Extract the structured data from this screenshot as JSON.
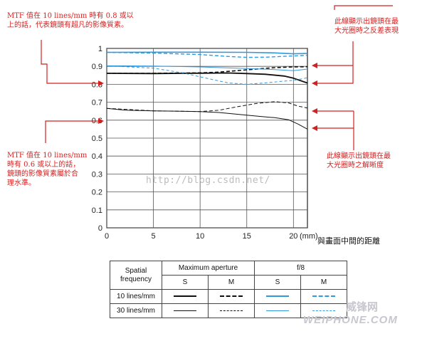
{
  "notes": {
    "top_left": "MTF 值在 10 lines/mm 時有 0.8 或以\n上的話，代表鏡頭有超凡的影像質素。",
    "mid_left": "MTF 值在 10 lines/mm\n時有 0.6 或以上的話，\n鏡頭的影像質素屬於合\n理水準。",
    "top_right": "此線顯示出鏡頭在最\n大光圈時之反差表現",
    "mid_right": "此線顯示出鏡頭在最\n大光圈時之解晰度"
  },
  "watermark": "http://blog.csdn.net/",
  "logo": {
    "line1": "威锋网",
    "line2": "WEIPHONE.COM"
  },
  "colors": {
    "black": "#111111",
    "blue": "#3399dd",
    "annotation": "#d42020"
  },
  "chart_data": {
    "type": "line",
    "x_unit": "(mm)",
    "xlabel": "與畫面中間的距離",
    "xlim": [
      0,
      21.5
    ],
    "ylim": [
      0,
      1
    ],
    "x_ticks": [
      "0",
      "5",
      "10",
      "15",
      "20"
    ],
    "y_ticks": [
      "0",
      "0.1",
      "0.2",
      "0.3",
      "0.4",
      "0.5",
      "0.6",
      "0.7",
      "0.8",
      "0.9",
      "1"
    ],
    "grid": true,
    "series": [
      {
        "name": "Maximum aperture S 10 lines/mm",
        "color": "#111111",
        "width": 1.8,
        "dash": "",
        "points": [
          [
            0,
            0.861
          ],
          [
            5,
            0.86
          ],
          [
            10,
            0.862
          ],
          [
            13,
            0.863
          ],
          [
            15,
            0.86
          ],
          [
            17,
            0.856
          ],
          [
            19,
            0.846
          ],
          [
            20,
            0.834
          ],
          [
            21.5,
            0.807
          ]
        ]
      },
      {
        "name": "Maximum aperture M 10 lines/mm",
        "color": "#111111",
        "width": 1.6,
        "dash": "5,3",
        "points": [
          [
            0,
            0.861
          ],
          [
            5,
            0.861
          ],
          [
            10,
            0.864
          ],
          [
            12,
            0.868
          ],
          [
            14,
            0.876
          ],
          [
            16,
            0.885
          ],
          [
            18,
            0.893
          ],
          [
            20,
            0.897
          ],
          [
            21.5,
            0.898
          ]
        ]
      },
      {
        "name": "Maximum aperture S 30 lines/mm",
        "color": "#111111",
        "width": 1.0,
        "dash": "",
        "points": [
          [
            0,
            0.666
          ],
          [
            2,
            0.656
          ],
          [
            5,
            0.652
          ],
          [
            8,
            0.65
          ],
          [
            10,
            0.648
          ],
          [
            12,
            0.643
          ],
          [
            14,
            0.633
          ],
          [
            16,
            0.623
          ],
          [
            18,
            0.614
          ],
          [
            19.5,
            0.602
          ],
          [
            20.5,
            0.578
          ],
          [
            21.5,
            0.55
          ]
        ]
      },
      {
        "name": "Maximum aperture M 30 lines/mm",
        "color": "#111111",
        "width": 1.0,
        "dash": "5,3",
        "points": [
          [
            0,
            0.666
          ],
          [
            5,
            0.652
          ],
          [
            10,
            0.648
          ],
          [
            12,
            0.655
          ],
          [
            14,
            0.675
          ],
          [
            16,
            0.693
          ],
          [
            18,
            0.703
          ],
          [
            19.5,
            0.696
          ],
          [
            20.5,
            0.678
          ],
          [
            21.5,
            0.668
          ]
        ]
      },
      {
        "name": "f/8 S 10 lines/mm",
        "color": "#3399dd",
        "width": 1.6,
        "dash": "",
        "points": [
          [
            0,
            0.978
          ],
          [
            5,
            0.979
          ],
          [
            10,
            0.979
          ],
          [
            15,
            0.978
          ],
          [
            18,
            0.975
          ],
          [
            20,
            0.97
          ],
          [
            21.5,
            0.972
          ]
        ]
      },
      {
        "name": "f/8 M 10 lines/mm",
        "color": "#3399dd",
        "width": 1.4,
        "dash": "5,3",
        "points": [
          [
            0,
            0.978
          ],
          [
            5,
            0.974
          ],
          [
            10,
            0.966
          ],
          [
            13,
            0.955
          ],
          [
            15,
            0.95
          ],
          [
            17,
            0.951
          ],
          [
            19,
            0.956
          ],
          [
            20,
            0.958
          ],
          [
            21.5,
            0.962
          ]
        ]
      },
      {
        "name": "f/8 S 30 lines/mm",
        "color": "#3399dd",
        "width": 1.0,
        "dash": "",
        "points": [
          [
            0,
            0.903
          ],
          [
            5,
            0.902
          ],
          [
            10,
            0.897
          ],
          [
            15,
            0.888
          ],
          [
            18,
            0.882
          ],
          [
            20,
            0.876
          ],
          [
            21.5,
            0.885
          ]
        ]
      },
      {
        "name": "f/8 M 30 lines/mm",
        "color": "#3399dd",
        "width": 1.0,
        "dash": "4,3",
        "points": [
          [
            0,
            0.903
          ],
          [
            5,
            0.89
          ],
          [
            8,
            0.865
          ],
          [
            11,
            0.83
          ],
          [
            13,
            0.808
          ],
          [
            15,
            0.8
          ],
          [
            17,
            0.808
          ],
          [
            19,
            0.818
          ],
          [
            20,
            0.822
          ],
          [
            21.5,
            0.836
          ]
        ]
      }
    ]
  },
  "legend_table": {
    "header_col": "Spatial\nfrequency",
    "max_aperture": "Maximum aperture",
    "f8": "f/8",
    "sub": [
      "S",
      "M",
      "S",
      "M"
    ],
    "rows": [
      "10 lines/mm",
      "30 lines/mm"
    ]
  }
}
